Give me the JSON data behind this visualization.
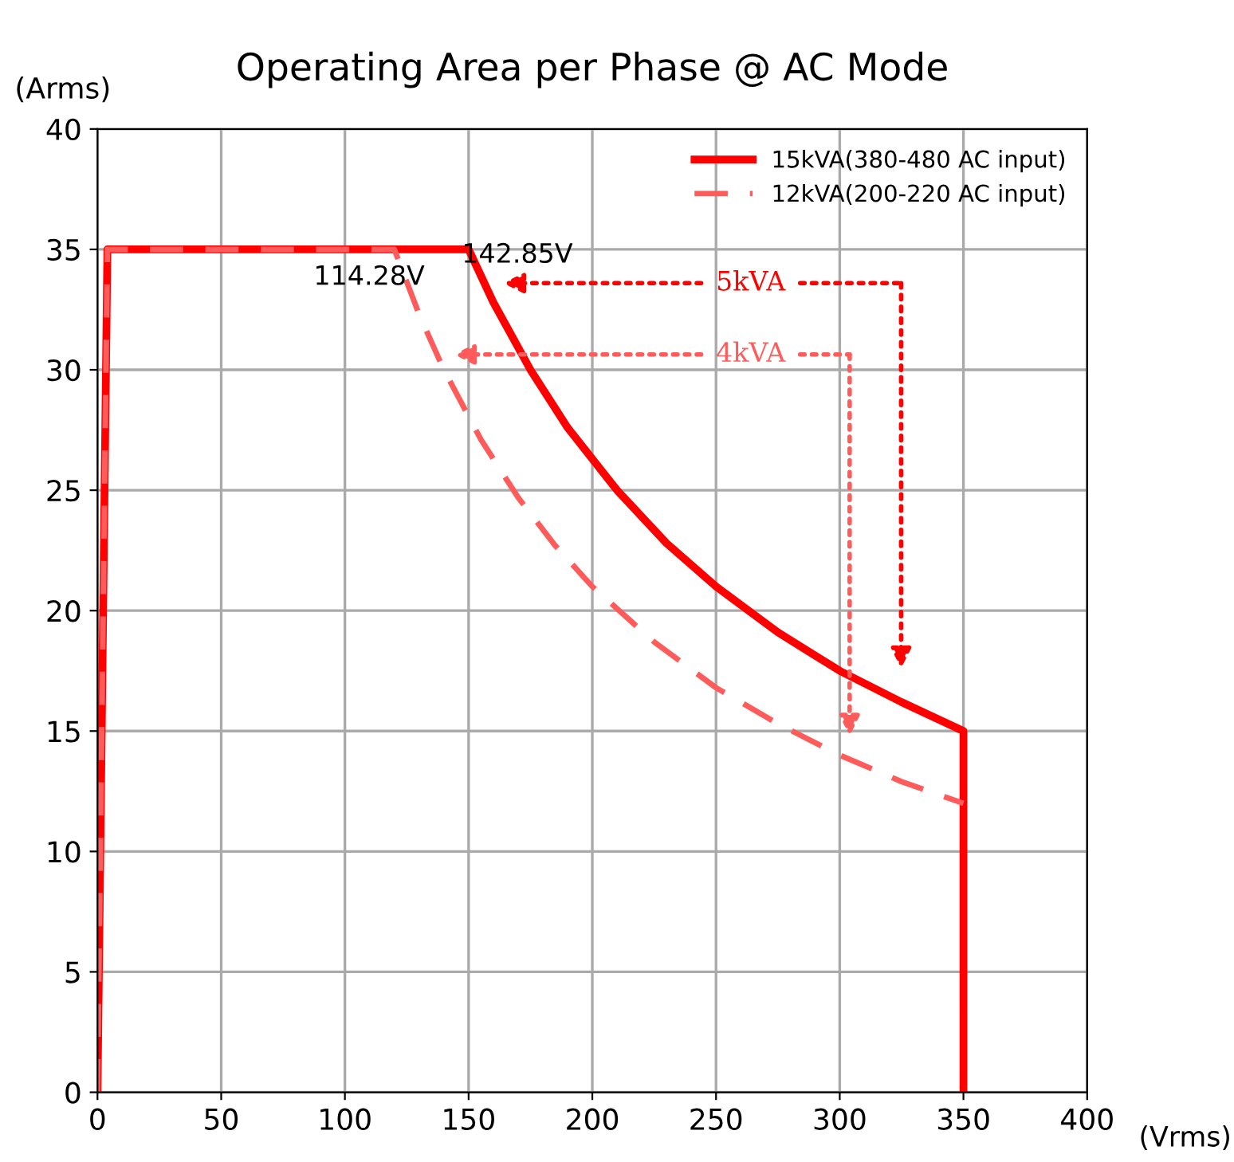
{
  "chart_data": {
    "type": "line",
    "title": "Operating Area per Phase @ AC Mode",
    "xlabel": "(Vrms)",
    "ylabel": "(Arms)",
    "series": [
      {
        "name": "15kVA(380-480 AC input)",
        "color": "#ff0000",
        "line_style": "solid",
        "x": [
          0,
          4,
          150,
          160,
          175,
          190,
          210,
          230,
          250,
          275,
          300,
          325,
          350,
          350
        ],
        "values": [
          0,
          35,
          35,
          32.8,
          30,
          27.6,
          25,
          22.8,
          21,
          19.1,
          17.5,
          16.2,
          15,
          0
        ]
      },
      {
        "name": "12kVA(200-220 AC input)",
        "color": "#ff5b5b",
        "line_style": "dashed",
        "x": [
          0,
          4,
          120,
          130,
          140,
          155,
          170,
          185,
          200,
          225,
          250,
          275,
          300,
          325,
          350
        ],
        "values": [
          0,
          35,
          35,
          32.3,
          30,
          27.1,
          24.7,
          22.7,
          21,
          18.7,
          16.8,
          15.3,
          14,
          12.9,
          12
        ]
      }
    ],
    "annotations": [
      {
        "text": "114.28V",
        "x": 114.28,
        "y": 35
      },
      {
        "text": "142.85V",
        "x": 150,
        "y": 35
      },
      "5kVA",
      "4kVA"
    ],
    "xlim": [
      0,
      400
    ],
    "xticks": [
      0,
      50,
      100,
      150,
      200,
      250,
      300,
      350,
      400
    ],
    "ylim": [
      0,
      40
    ],
    "yticks": [
      0,
      5,
      10,
      15,
      20,
      25,
      30,
      35,
      40
    ],
    "grid": true,
    "legend": "top right",
    "marker": "none"
  }
}
